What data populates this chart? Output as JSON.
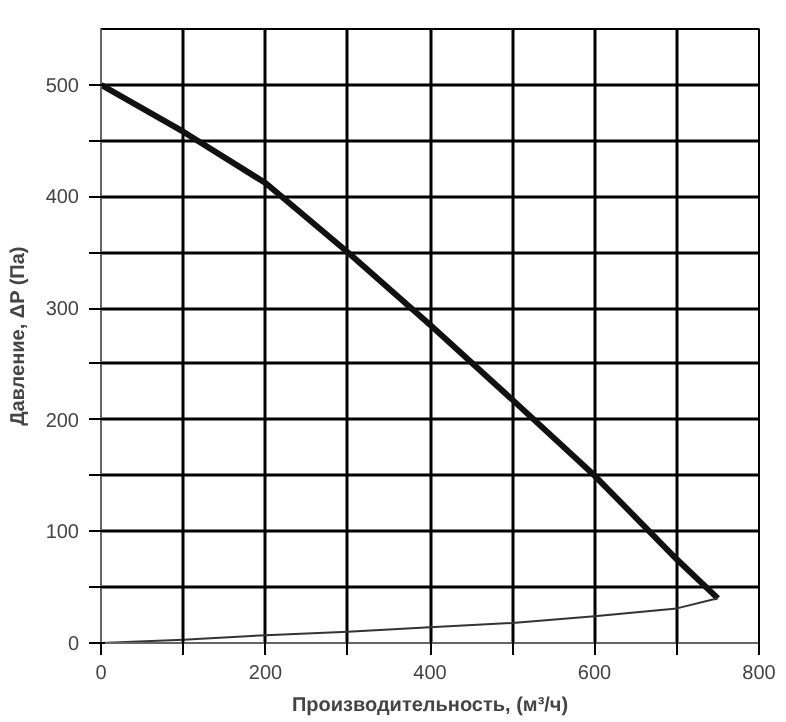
{
  "chart_data": {
    "type": "line",
    "xlabel": "Производительность, (м³/ч)",
    "ylabel": "Давление, ΔP (Па)",
    "xlim": [
      0,
      800
    ],
    "ylim": [
      0,
      550
    ],
    "xticks": [
      0,
      {
        "value": 100,
        "label": null
      },
      200,
      {
        "value": 300,
        "label": null
      },
      400,
      {
        "value": 500,
        "label": null
      },
      600,
      {
        "value": 700,
        "label": null
      },
      800
    ],
    "yticks": [
      0,
      {
        "value": 50,
        "label": null
      },
      100,
      {
        "value": 150,
        "label": null
      },
      200,
      {
        "value": 250,
        "label": null
      },
      300,
      {
        "value": 350,
        "label": null
      },
      400,
      {
        "value": 450,
        "label": null
      },
      500
    ],
    "grid": true,
    "marker": "none",
    "line_style": "solid",
    "series": [
      {
        "color": "#111111",
        "x": [
          0,
          100,
          200,
          300,
          400,
          500,
          600,
          700,
          750
        ],
        "values": [
          500,
          458,
          412,
          350,
          285,
          218,
          150,
          75,
          40
        ]
      },
      {
        "color": "#333333",
        "x": [
          0,
          100,
          200,
          300,
          400,
          500,
          600,
          700,
          750
        ],
        "values": [
          0,
          3,
          7,
          10,
          14,
          18,
          24,
          31,
          40
        ]
      }
    ]
  }
}
